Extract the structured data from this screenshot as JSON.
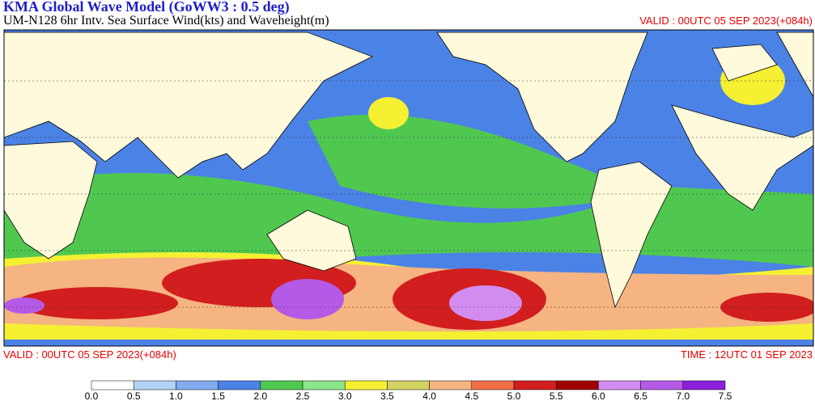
{
  "header": {
    "title": "KMA  Global Wave Model (GoWW3 : 0.5 deg)",
    "subtitle": "UM-N128  6hr Intv. Sea Surface Wind(kts) and Waveheight(m)",
    "valid_top": "VALID : 00UTC 05 SEP 2023(+084h)"
  },
  "footer": {
    "valid": "VALID : 00UTC 05 SEP 2023(+084h)",
    "time": "TIME : 12UTC 01 SEP 2023"
  },
  "colorbar": {
    "labels": [
      "0.0",
      "0.5",
      "1.0",
      "1.5",
      "2.0",
      "2.5",
      "3.0",
      "3.5",
      "4.0",
      "4.5",
      "5.0",
      "5.5",
      "6.0",
      "6.5",
      "7.0",
      "7.5"
    ],
    "colors": [
      "#ffffff",
      "#b4d2f5",
      "#82aaf0",
      "#4b82e6",
      "#50c850",
      "#8ce68c",
      "#f5f032",
      "#d2d264",
      "#f5b482",
      "#f06e46",
      "#d21e1e",
      "#a00000",
      "#d28cf0",
      "#b45ae6",
      "#8c1edc"
    ]
  }
}
